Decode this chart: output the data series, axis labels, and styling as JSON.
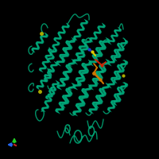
{
  "background_color": "#000000",
  "figure_size": [
    2.0,
    2.0
  ],
  "dpi": 100,
  "protein_color": "#00aa78",
  "protein_highlight": "#00cc99",
  "protein_shadow": "#006655",
  "ligand_orange": "#cc7700",
  "ligand_red": "#cc2200",
  "ligand_yellow": "#ddcc00",
  "ligand_blue": "#2244cc",
  "axis_blue": "#2266ee",
  "axis_green": "#22cc22",
  "axis_red": "#cc2222",
  "yellow_dot": "#aaaa00"
}
